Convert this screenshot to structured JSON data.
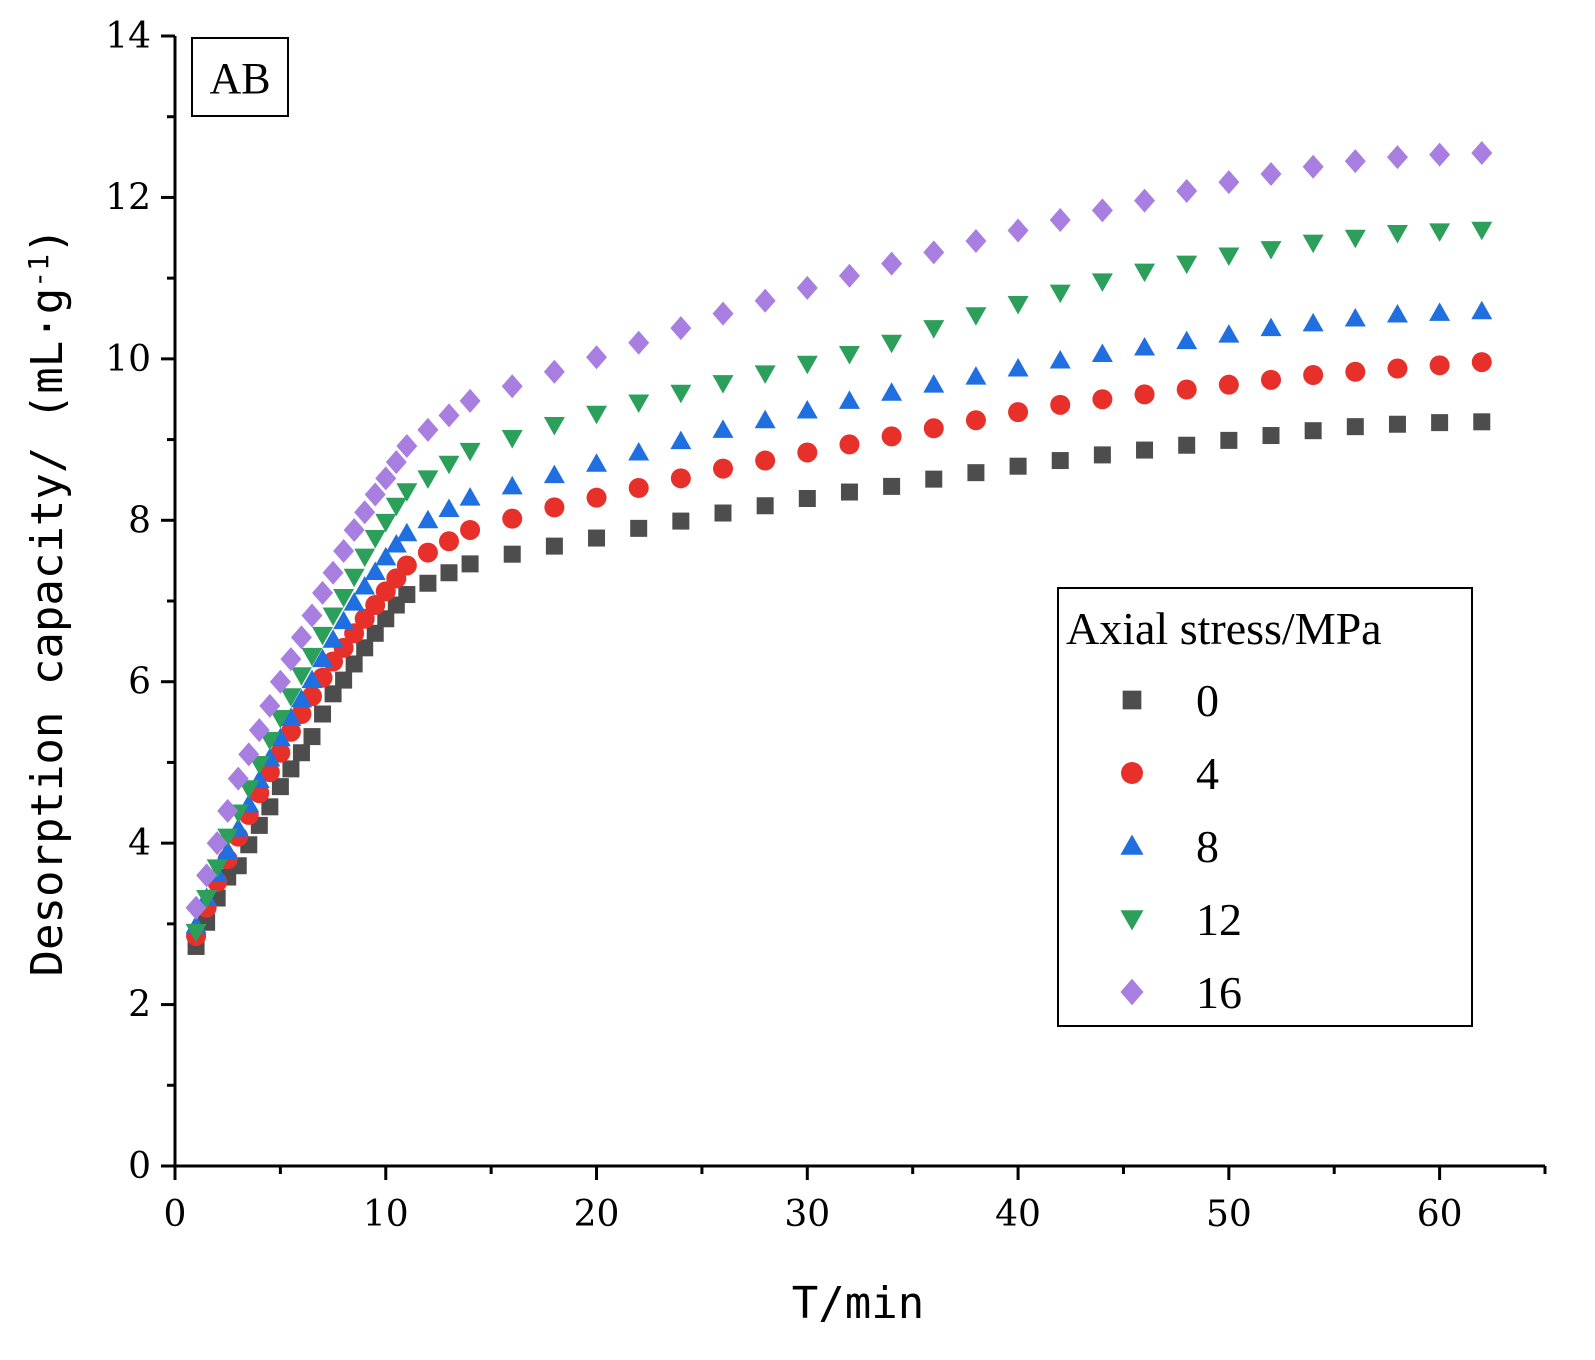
{
  "chart_data": {
    "type": "scatter",
    "panel_label": "AB",
    "xlabel": "T/min",
    "ylabel": "Desorption capacity/ (mL·g",
    "ylabel_sup": "-1",
    "ylabel_close": ")",
    "xlim": [
      0,
      65
    ],
    "ylim": [
      0,
      14
    ],
    "xticks": [
      0,
      10,
      20,
      30,
      40,
      50,
      60
    ],
    "yticks": [
      0,
      2,
      4,
      6,
      8,
      10,
      12,
      14
    ],
    "xtick_labels": [
      "0",
      "10",
      "20",
      "30",
      "40",
      "50",
      "60"
    ],
    "ytick_labels": [
      "0",
      "2",
      "4",
      "6",
      "8",
      "10",
      "12",
      "14"
    ],
    "legend_title": "Axial stress/MPa",
    "legend_position": "center-right",
    "x": [
      1,
      1.5,
      2,
      2.5,
      3,
      3.5,
      4,
      4.5,
      5,
      5.5,
      6,
      6.5,
      7,
      7.5,
      8,
      8.5,
      9,
      9.5,
      10,
      10.5,
      11,
      12,
      13,
      14,
      16,
      18,
      20,
      22,
      24,
      26,
      28,
      30,
      32,
      34,
      36,
      38,
      40,
      42,
      44,
      46,
      48,
      50,
      52,
      54,
      56,
      58,
      60,
      62
    ],
    "series": [
      {
        "name": "0",
        "marker": "square",
        "color": "#4d4d4d",
        "values": [
          2.72,
          3.02,
          3.32,
          3.58,
          3.72,
          3.98,
          4.22,
          4.45,
          4.7,
          4.92,
          5.12,
          5.32,
          5.6,
          5.85,
          6.02,
          6.22,
          6.42,
          6.6,
          6.78,
          6.95,
          7.08,
          7.22,
          7.35,
          7.46,
          7.58,
          7.68,
          7.78,
          7.9,
          7.99,
          8.09,
          8.18,
          8.27,
          8.35,
          8.42,
          8.51,
          8.59,
          8.67,
          8.74,
          8.81,
          8.87,
          8.93,
          8.99,
          9.05,
          9.11,
          9.16,
          9.19,
          9.21,
          9.22
        ]
      },
      {
        "name": "4",
        "marker": "circle",
        "color": "#e8302b",
        "values": [
          2.85,
          3.2,
          3.52,
          3.8,
          4.08,
          4.35,
          4.62,
          4.88,
          5.12,
          5.38,
          5.6,
          5.82,
          6.05,
          6.25,
          6.42,
          6.6,
          6.78,
          6.95,
          7.12,
          7.28,
          7.44,
          7.6,
          7.74,
          7.88,
          8.02,
          8.16,
          8.28,
          8.4,
          8.52,
          8.64,
          8.74,
          8.84,
          8.94,
          9.04,
          9.14,
          9.24,
          9.34,
          9.43,
          9.5,
          9.56,
          9.62,
          9.68,
          9.74,
          9.8,
          9.84,
          9.88,
          9.92,
          9.96
        ]
      },
      {
        "name": "8",
        "marker": "triangle-up",
        "color": "#1f6fe0",
        "values": [
          2.98,
          3.32,
          3.62,
          3.9,
          4.18,
          4.48,
          4.78,
          5.05,
          5.3,
          5.55,
          5.78,
          6.02,
          6.28,
          6.52,
          6.75,
          6.98,
          7.18,
          7.36,
          7.54,
          7.7,
          7.84,
          8.0,
          8.14,
          8.28,
          8.42,
          8.56,
          8.7,
          8.84,
          8.98,
          9.12,
          9.24,
          9.36,
          9.48,
          9.58,
          9.68,
          9.78,
          9.88,
          9.98,
          10.06,
          10.14,
          10.22,
          10.3,
          10.38,
          10.44,
          10.5,
          10.55,
          10.57,
          10.59
        ]
      },
      {
        "name": "12",
        "marker": "triangle-down",
        "color": "#2ca05a",
        "values": [
          2.9,
          3.32,
          3.7,
          4.08,
          4.38,
          4.68,
          4.98,
          5.28,
          5.55,
          5.82,
          6.08,
          6.32,
          6.58,
          6.82,
          7.05,
          7.3,
          7.55,
          7.78,
          7.98,
          8.18,
          8.36,
          8.52,
          8.7,
          8.86,
          9.02,
          9.18,
          9.32,
          9.46,
          9.58,
          9.7,
          9.82,
          9.94,
          10.06,
          10.2,
          10.38,
          10.54,
          10.68,
          10.82,
          10.96,
          11.08,
          11.18,
          11.28,
          11.36,
          11.44,
          11.5,
          11.56,
          11.58,
          11.6
        ]
      },
      {
        "name": "16",
        "marker": "diamond",
        "color": "#a87fe0",
        "values": [
          3.2,
          3.6,
          4.0,
          4.4,
          4.8,
          5.1,
          5.4,
          5.7,
          6.0,
          6.28,
          6.55,
          6.82,
          7.1,
          7.35,
          7.62,
          7.88,
          8.1,
          8.32,
          8.52,
          8.72,
          8.92,
          9.12,
          9.3,
          9.48,
          9.66,
          9.84,
          10.02,
          10.2,
          10.38,
          10.56,
          10.72,
          10.88,
          11.03,
          11.18,
          11.32,
          11.46,
          11.59,
          11.72,
          11.84,
          11.96,
          12.08,
          12.19,
          12.29,
          12.38,
          12.45,
          12.5,
          12.53,
          12.55
        ]
      }
    ]
  }
}
